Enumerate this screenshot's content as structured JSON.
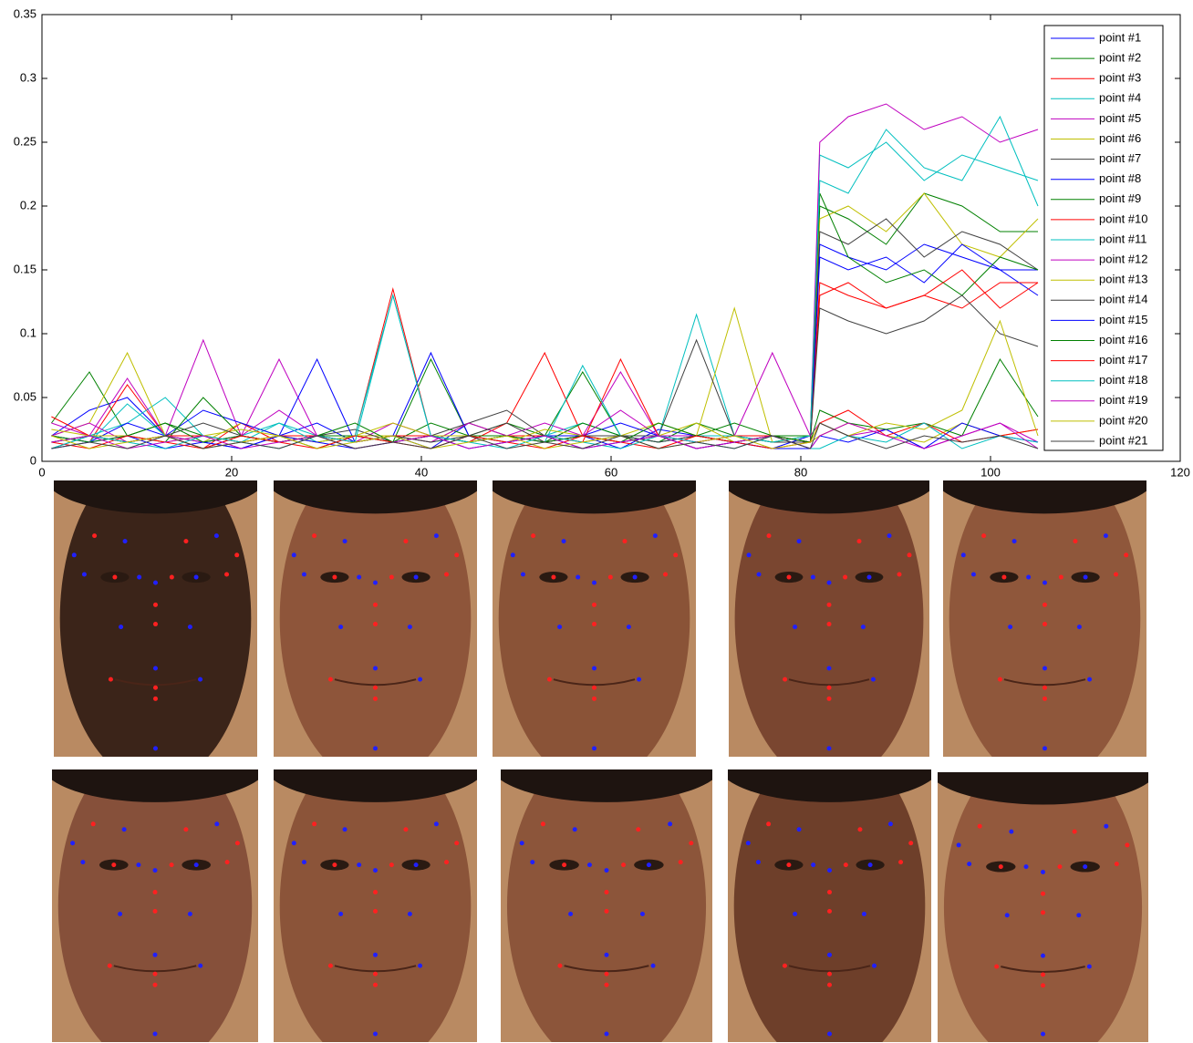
{
  "chart_data": {
    "type": "line",
    "x": [
      1,
      5,
      9,
      13,
      17,
      21,
      25,
      29,
      33,
      37,
      41,
      45,
      49,
      53,
      57,
      61,
      65,
      69,
      73,
      77,
      81,
      82,
      85,
      89,
      93,
      97,
      101,
      105
    ],
    "xlim": [
      0,
      120
    ],
    "xticks": [
      0,
      20,
      40,
      60,
      80,
      100,
      120
    ],
    "ylim": [
      0,
      0.35
    ],
    "yticks": [
      0,
      0.05,
      0.1,
      0.15,
      0.2,
      0.25,
      0.3,
      0.35
    ],
    "grid": false,
    "legend": "top-right",
    "series": [
      {
        "name": "point #1",
        "color": "#0000ff",
        "values": [
          0.02,
          0.04,
          0.05,
          0.02,
          0.015,
          0.01,
          0.02,
          0.03,
          0.015,
          0.02,
          0.01,
          0.03,
          0.02,
          0.015,
          0.02,
          0.01,
          0.025,
          0.02,
          0.015,
          0.01,
          0.02,
          0.17,
          0.16,
          0.15,
          0.17,
          0.16,
          0.15,
          0.13
        ]
      },
      {
        "name": "point #2",
        "color": "#008000",
        "values": [
          0.03,
          0.07,
          0.02,
          0.03,
          0.02,
          0.015,
          0.02,
          0.01,
          0.02,
          0.015,
          0.08,
          0.02,
          0.03,
          0.02,
          0.07,
          0.02,
          0.015,
          0.03,
          0.02,
          0.015,
          0.02,
          0.2,
          0.19,
          0.17,
          0.21,
          0.2,
          0.18,
          0.18
        ]
      },
      {
        "name": "point #3",
        "color": "#ff0000",
        "values": [
          0.02,
          0.015,
          0.06,
          0.02,
          0.01,
          0.03,
          0.015,
          0.02,
          0.02,
          0.135,
          0.02,
          0.015,
          0.03,
          0.085,
          0.02,
          0.015,
          0.02,
          0.01,
          0.015,
          0.02,
          0.015,
          0.14,
          0.13,
          0.12,
          0.13,
          0.12,
          0.14,
          0.14
        ]
      },
      {
        "name": "point #4",
        "color": "#00bfbf",
        "values": [
          0.015,
          0.02,
          0.03,
          0.05,
          0.02,
          0.015,
          0.03,
          0.02,
          0.02,
          0.02,
          0.015,
          0.02,
          0.015,
          0.02,
          0.03,
          0.02,
          0.02,
          0.115,
          0.02,
          0.015,
          0.02,
          0.24,
          0.23,
          0.25,
          0.22,
          0.24,
          0.23,
          0.22
        ]
      },
      {
        "name": "point #5",
        "color": "#bf00bf",
        "values": [
          0.03,
          0.02,
          0.065,
          0.02,
          0.095,
          0.02,
          0.08,
          0.02,
          0.015,
          0.03,
          0.02,
          0.015,
          0.02,
          0.03,
          0.02,
          0.07,
          0.02,
          0.02,
          0.015,
          0.02,
          0.02,
          0.25,
          0.27,
          0.28,
          0.26,
          0.27,
          0.25,
          0.26
        ]
      },
      {
        "name": "point #6",
        "color": "#bfbf00",
        "values": [
          0.02,
          0.03,
          0.085,
          0.02,
          0.015,
          0.03,
          0.02,
          0.015,
          0.02,
          0.02,
          0.015,
          0.03,
          0.02,
          0.015,
          0.02,
          0.02,
          0.03,
          0.02,
          0.12,
          0.015,
          0.02,
          0.19,
          0.2,
          0.18,
          0.21,
          0.17,
          0.16,
          0.19
        ]
      },
      {
        "name": "point #7",
        "color": "#404040",
        "values": [
          0.01,
          0.02,
          0.015,
          0.02,
          0.01,
          0.02,
          0.015,
          0.02,
          0.025,
          0.015,
          0.02,
          0.03,
          0.04,
          0.02,
          0.015,
          0.02,
          0.02,
          0.095,
          0.02,
          0.015,
          0.015,
          0.18,
          0.17,
          0.19,
          0.16,
          0.18,
          0.17,
          0.15
        ]
      },
      {
        "name": "point #8",
        "color": "#0000ff",
        "values": [
          0.02,
          0.015,
          0.03,
          0.02,
          0.04,
          0.03,
          0.02,
          0.08,
          0.015,
          0.02,
          0.085,
          0.02,
          0.015,
          0.02,
          0.02,
          0.03,
          0.02,
          0.015,
          0.02,
          0.02,
          0.015,
          0.16,
          0.15,
          0.16,
          0.14,
          0.17,
          0.15,
          0.15
        ]
      },
      {
        "name": "point #9",
        "color": "#008000",
        "values": [
          0.015,
          0.02,
          0.02,
          0.015,
          0.05,
          0.02,
          0.015,
          0.02,
          0.02,
          0.015,
          0.03,
          0.02,
          0.02,
          0.015,
          0.03,
          0.02,
          0.015,
          0.02,
          0.03,
          0.02,
          0.02,
          0.21,
          0.16,
          0.14,
          0.15,
          0.13,
          0.16,
          0.15
        ]
      },
      {
        "name": "point #10",
        "color": "#ff0000",
        "values": [
          0.035,
          0.02,
          0.015,
          0.02,
          0.02,
          0.015,
          0.02,
          0.02,
          0.015,
          0.02,
          0.02,
          0.015,
          0.02,
          0.02,
          0.015,
          0.08,
          0.02,
          0.015,
          0.02,
          0.02,
          0.015,
          0.13,
          0.14,
          0.12,
          0.13,
          0.15,
          0.12,
          0.14
        ]
      },
      {
        "name": "point #11",
        "color": "#00bfbf",
        "values": [
          0.02,
          0.015,
          0.045,
          0.02,
          0.015,
          0.02,
          0.03,
          0.015,
          0.02,
          0.13,
          0.02,
          0.015,
          0.02,
          0.015,
          0.075,
          0.02,
          0.015,
          0.02,
          0.02,
          0.015,
          0.02,
          0.22,
          0.21,
          0.26,
          0.23,
          0.22,
          0.27,
          0.2
        ]
      },
      {
        "name": "point #12",
        "color": "#bf00bf",
        "values": [
          0.02,
          0.03,
          0.015,
          0.02,
          0.015,
          0.02,
          0.04,
          0.02,
          0.015,
          0.02,
          0.015,
          0.03,
          0.02,
          0.015,
          0.02,
          0.04,
          0.02,
          0.015,
          0.02,
          0.085,
          0.02,
          0.03,
          0.02,
          0.025,
          0.01,
          0.02,
          0.03,
          0.015
        ]
      },
      {
        "name": "point #13",
        "color": "#bfbf00",
        "values": [
          0.025,
          0.02,
          0.02,
          0.015,
          0.02,
          0.025,
          0.02,
          0.015,
          0.02,
          0.03,
          0.02,
          0.02,
          0.015,
          0.025,
          0.02,
          0.015,
          0.02,
          0.03,
          0.015,
          0.02,
          0.015,
          0.02,
          0.03,
          0.02,
          0.015,
          0.03,
          0.02,
          0.025
        ]
      },
      {
        "name": "point #14",
        "color": "#404040",
        "values": [
          0.015,
          0.02,
          0.015,
          0.02,
          0.03,
          0.02,
          0.015,
          0.02,
          0.015,
          0.02,
          0.015,
          0.02,
          0.03,
          0.015,
          0.02,
          0.02,
          0.015,
          0.02,
          0.015,
          0.02,
          0.015,
          0.12,
          0.11,
          0.1,
          0.11,
          0.13,
          0.1,
          0.09
        ]
      },
      {
        "name": "point #15",
        "color": "#0000ff",
        "values": [
          0.01,
          0.015,
          0.02,
          0.01,
          0.015,
          0.01,
          0.02,
          0.015,
          0.01,
          0.015,
          0.02,
          0.01,
          0.015,
          0.02,
          0.01,
          0.015,
          0.02,
          0.01,
          0.015,
          0.01,
          0.01,
          0.02,
          0.015,
          0.025,
          0.01,
          0.03,
          0.02,
          0.015
        ]
      },
      {
        "name": "point #16",
        "color": "#008000",
        "values": [
          0.02,
          0.015,
          0.02,
          0.03,
          0.015,
          0.02,
          0.015,
          0.02,
          0.03,
          0.015,
          0.02,
          0.015,
          0.02,
          0.015,
          0.02,
          0.015,
          0.03,
          0.02,
          0.015,
          0.02,
          0.015,
          0.04,
          0.03,
          0.025,
          0.03,
          0.02,
          0.08,
          0.035
        ]
      },
      {
        "name": "point #17",
        "color": "#ff0000",
        "values": [
          0.015,
          0.01,
          0.02,
          0.015,
          0.01,
          0.02,
          0.015,
          0.01,
          0.02,
          0.015,
          0.01,
          0.02,
          0.015,
          0.01,
          0.02,
          0.015,
          0.01,
          0.02,
          0.015,
          0.01,
          0.015,
          0.03,
          0.04,
          0.02,
          0.03,
          0.015,
          0.02,
          0.025
        ]
      },
      {
        "name": "point #18",
        "color": "#00bfbf",
        "values": [
          0.01,
          0.02,
          0.015,
          0.01,
          0.02,
          0.015,
          0.01,
          0.02,
          0.015,
          0.13,
          0.02,
          0.015,
          0.01,
          0.02,
          0.015,
          0.01,
          0.02,
          0.015,
          0.01,
          0.02,
          0.01,
          0.01,
          0.02,
          0.015,
          0.03,
          0.01,
          0.02,
          0.015
        ]
      },
      {
        "name": "point #19",
        "color": "#bf00bf",
        "values": [
          0.015,
          0.02,
          0.01,
          0.015,
          0.02,
          0.01,
          0.015,
          0.02,
          0.01,
          0.015,
          0.02,
          0.01,
          0.015,
          0.02,
          0.01,
          0.015,
          0.02,
          0.01,
          0.015,
          0.02,
          0.01,
          0.02,
          0.03,
          0.02,
          0.01,
          0.02,
          0.03,
          0.01
        ]
      },
      {
        "name": "point #20",
        "color": "#bfbf00",
        "values": [
          0.02,
          0.01,
          0.015,
          0.02,
          0.01,
          0.015,
          0.02,
          0.01,
          0.015,
          0.02,
          0.01,
          0.015,
          0.02,
          0.01,
          0.015,
          0.02,
          0.01,
          0.015,
          0.02,
          0.01,
          0.015,
          0.03,
          0.02,
          0.03,
          0.025,
          0.04,
          0.11,
          0.02
        ]
      },
      {
        "name": "point #21",
        "color": "#404040",
        "values": [
          0.01,
          0.015,
          0.01,
          0.02,
          0.01,
          0.015,
          0.01,
          0.02,
          0.01,
          0.015,
          0.01,
          0.02,
          0.01,
          0.015,
          0.01,
          0.02,
          0.01,
          0.015,
          0.01,
          0.02,
          0.01,
          0.03,
          0.02,
          0.01,
          0.02,
          0.015,
          0.02,
          0.01
        ]
      }
    ]
  }
}
